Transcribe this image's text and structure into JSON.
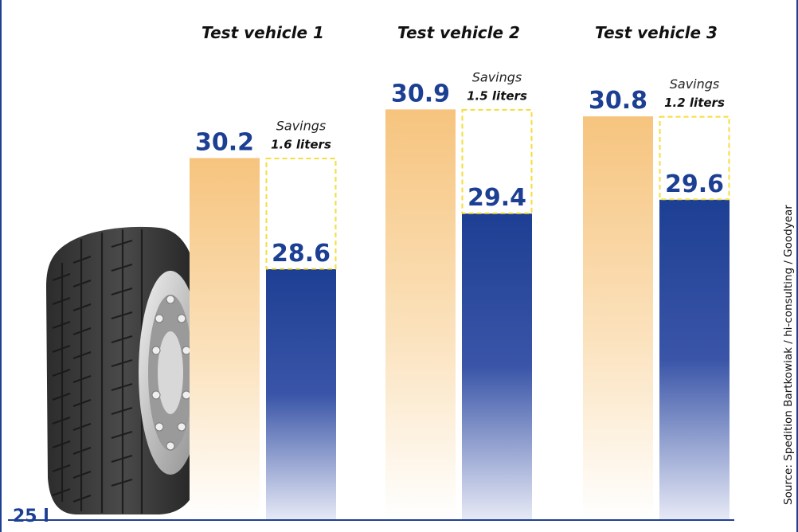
{
  "chart_data": {
    "type": "bar",
    "categories": [
      "Test vehicle 1",
      "Test vehicle 2",
      "Test vehicle 3"
    ],
    "series": [
      {
        "values": [
          30.2,
          30.9,
          30.8
        ],
        "color": "#f6c47e"
      },
      {
        "values": [
          28.6,
          29.4,
          29.6
        ],
        "color": "#1d3f93"
      }
    ],
    "savings_label": "Savings",
    "savings": [
      "1.6 liters",
      "1.5 liters",
      "1.2 liters"
    ],
    "baseline": 25,
    "baseline_label": "25 l",
    "ylim": [
      25,
      32
    ],
    "source": "Source: Spedition Bartkowiak / hi-consulting / Goodyear",
    "colors": {
      "orange": "#f6c47e",
      "blue": "#1d3f93",
      "dashed": "#f5dd3c",
      "frame": "#1f3f93"
    }
  }
}
